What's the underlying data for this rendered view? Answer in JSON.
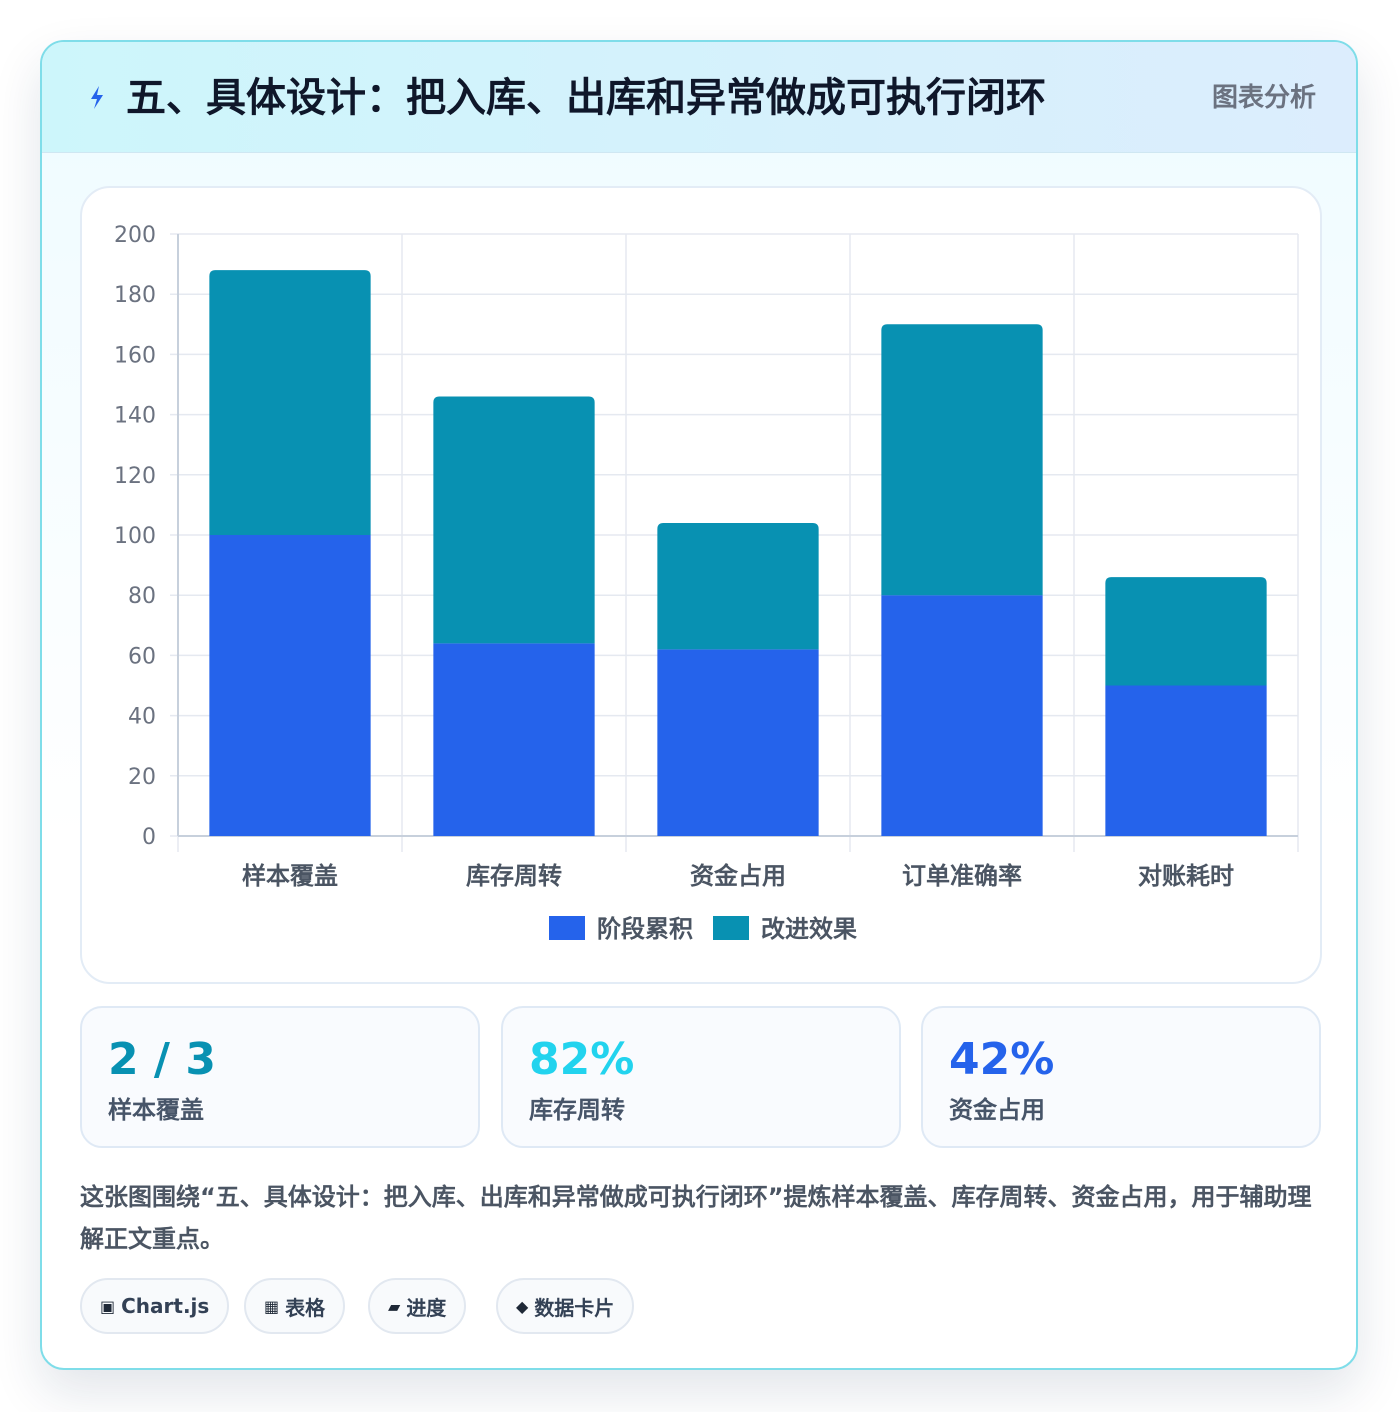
{
  "header": {
    "title": "五、具体设计：把入库、出库和异常做成可执行闭环",
    "tag": "图表分析",
    "icon": "lightning-icon"
  },
  "chart_data": {
    "type": "bar",
    "stacked": true,
    "categories": [
      "样本覆盖",
      "库存周转",
      "资金占用",
      "订单准确率",
      "对账耗时"
    ],
    "series": [
      {
        "name": "阶段累积",
        "values": [
          100,
          64,
          62,
          80,
          50
        ],
        "color": "#2563eb"
      },
      {
        "name": "改进效果",
        "values": [
          88,
          82,
          42,
          90,
          36
        ],
        "color": "#0891b2"
      }
    ],
    "ylim": [
      0,
      200
    ],
    "yticks": [
      "0",
      "20",
      "40",
      "60",
      "80",
      "100",
      "120",
      "140",
      "160",
      "180",
      "200"
    ],
    "grid": true,
    "legend": "bottom"
  },
  "stats": [
    {
      "value": "2 / 3",
      "label": "样本覆盖",
      "color": "#0891b2"
    },
    {
      "value": "82%",
      "label": "库存周转",
      "color": "#22d3ee"
    },
    {
      "value": "42%",
      "label": "资金占用",
      "color": "#2563eb"
    }
  ],
  "description": "这张图围绕“五、具体设计：把入库、出库和异常做成可执行闭环”提炼样本覆盖、库存周转、资金占用，用于辅助理解正文重点。",
  "tags": [
    {
      "icon": "▣",
      "icon_name": "chart-icon",
      "label": "Chart.js"
    },
    {
      "icon": "▦",
      "icon_name": "table-icon",
      "label": "表格"
    },
    {
      "icon": "▰",
      "icon_name": "progress-icon",
      "label": "进度"
    },
    {
      "icon": "◆",
      "icon_name": "card-icon",
      "label": "数据卡片"
    }
  ]
}
